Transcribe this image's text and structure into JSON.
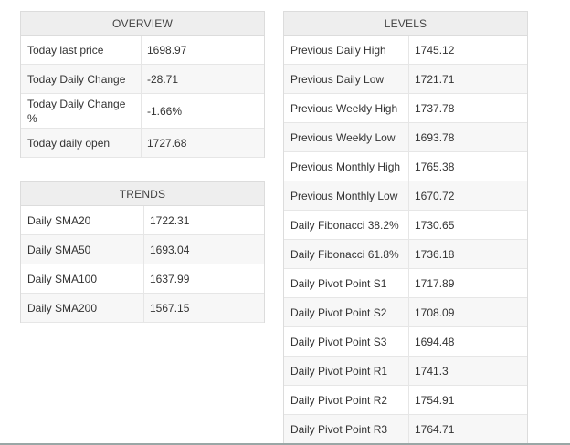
{
  "overview": {
    "title": "OVERVIEW",
    "rows": [
      {
        "label": "Today last price",
        "value": "1698.97"
      },
      {
        "label": "Today Daily Change",
        "value": "-28.71"
      },
      {
        "label": "Today Daily Change %",
        "value": "-1.66%"
      },
      {
        "label": "Today daily open",
        "value": "1727.68"
      }
    ]
  },
  "trends": {
    "title": "TRENDS",
    "rows": [
      {
        "label": "Daily SMA20",
        "value": "1722.31"
      },
      {
        "label": "Daily SMA50",
        "value": "1693.04"
      },
      {
        "label": "Daily SMA100",
        "value": "1637.99"
      },
      {
        "label": "Daily SMA200",
        "value": "1567.15"
      }
    ]
  },
  "levels": {
    "title": "LEVELS",
    "rows": [
      {
        "label": "Previous Daily High",
        "value": "1745.12"
      },
      {
        "label": "Previous Daily Low",
        "value": "1721.71"
      },
      {
        "label": "Previous Weekly High",
        "value": "1737.78"
      },
      {
        "label": "Previous Weekly Low",
        "value": "1693.78"
      },
      {
        "label": "Previous Monthly High",
        "value": "1765.38"
      },
      {
        "label": "Previous Monthly Low",
        "value": "1670.72"
      },
      {
        "label": "Daily Fibonacci 38.2%",
        "value": "1730.65"
      },
      {
        "label": "Daily Fibonacci 61.8%",
        "value": "1736.18"
      },
      {
        "label": "Daily Pivot Point S1",
        "value": "1717.89"
      },
      {
        "label": "Daily Pivot Point S2",
        "value": "1708.09"
      },
      {
        "label": "Daily Pivot Point S3",
        "value": "1694.48"
      },
      {
        "label": "Daily Pivot Point R1",
        "value": "1741.3"
      },
      {
        "label": "Daily Pivot Point R2",
        "value": "1754.91"
      },
      {
        "label": "Daily Pivot Point R3",
        "value": "1764.71"
      }
    ]
  }
}
